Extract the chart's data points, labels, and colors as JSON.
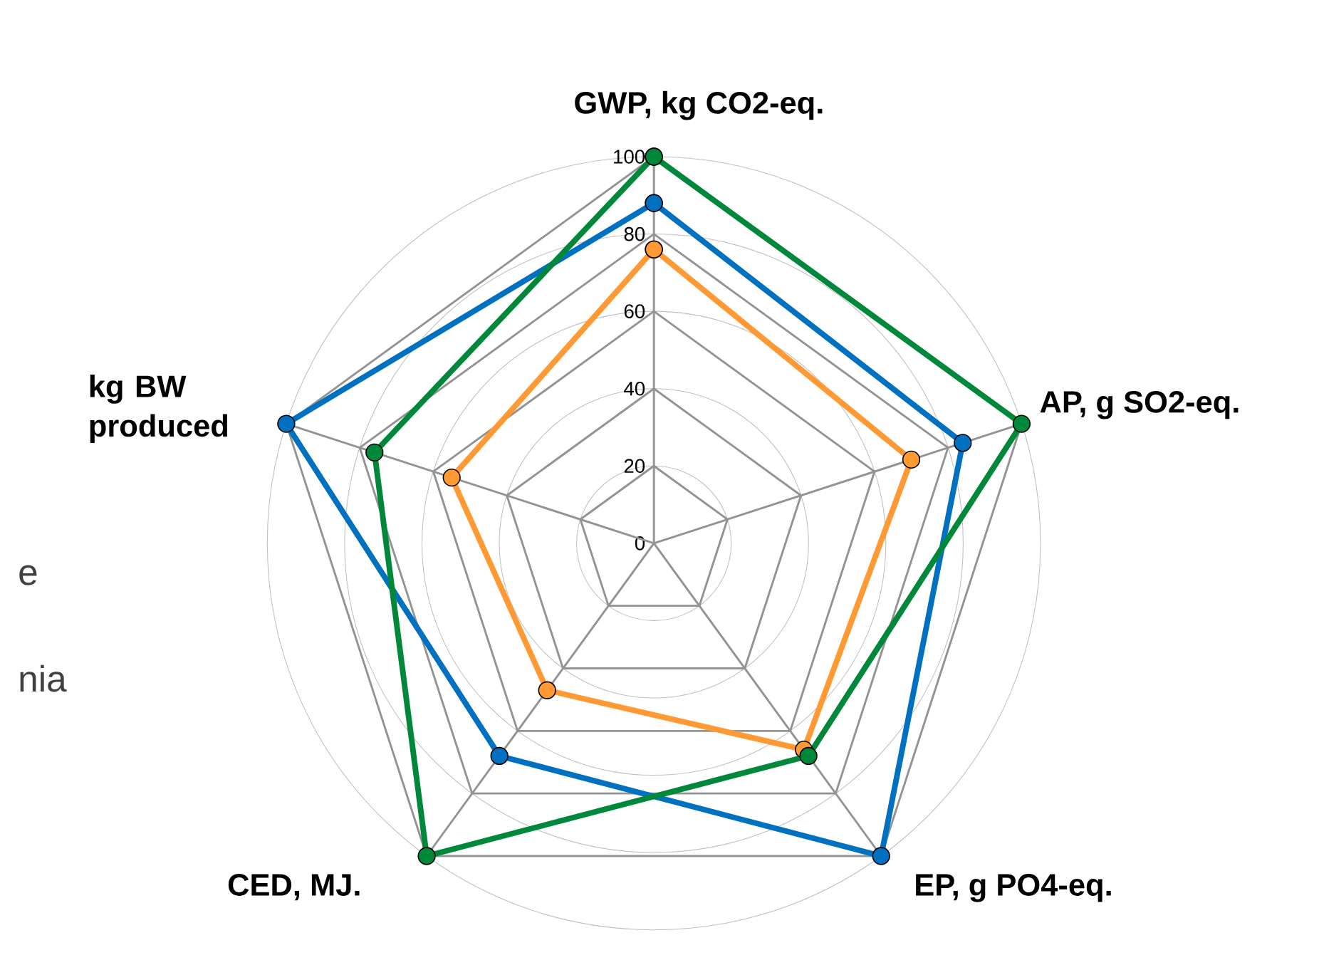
{
  "chart_data": {
    "type": "radar",
    "categories": [
      "GWP, kg CO2-eq.",
      "AP, g SO2-eq.",
      "EP, g PO4-eq.",
      "CED, MJ.",
      "kg BW\nproduced"
    ],
    "series": [
      {
        "color": "#0070c0",
        "values": [
          88,
          84,
          100,
          68,
          100
        ]
      },
      {
        "color": "#ff9933",
        "values": [
          76,
          70,
          66,
          47,
          55
        ]
      },
      {
        "color": "#00883a",
        "values": [
          100,
          100,
          68,
          100,
          76
        ]
      }
    ],
    "ylim": [
      0,
      100
    ],
    "yticks": [
      0,
      20,
      40,
      60,
      80,
      100
    ],
    "grid": true,
    "marker": "circle",
    "line_style": "solid",
    "annotations": [
      "e",
      "nia"
    ]
  }
}
